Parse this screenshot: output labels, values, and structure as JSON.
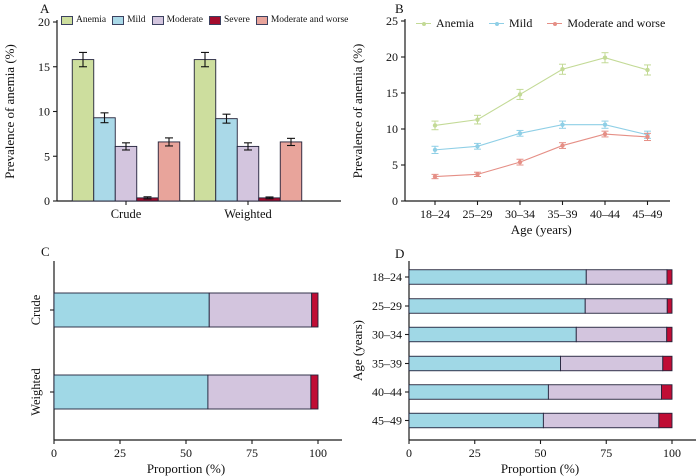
{
  "page": {
    "background": "#ffffff",
    "text_color": "#111111"
  },
  "chart_data": [
    {
      "panel": "A",
      "type": "bar",
      "title": "",
      "xlabel": "",
      "ylabel": "Prevalence of anemia (%)",
      "ylim": [
        0,
        20
      ],
      "yticks": [
        0,
        5,
        10,
        15,
        20
      ],
      "categories": [
        "Crude",
        "Weighted"
      ],
      "legend_position": "top",
      "axis_color": "#1a1a1a",
      "bar_border_color": "#22223a",
      "series": [
        {
          "name": "Anemia",
          "color": "#cdde9e",
          "values": [
            15.8,
            15.8
          ],
          "errors": [
            0.8,
            0.8
          ]
        },
        {
          "name": "Mild",
          "color": "#aad9e8",
          "values": [
            9.3,
            9.2
          ],
          "errors": [
            0.55,
            0.5
          ]
        },
        {
          "name": "Moderate",
          "color": "#d3c5de",
          "values": [
            6.1,
            6.1
          ],
          "errors": [
            0.4,
            0.4
          ]
        },
        {
          "name": "Severe",
          "color": "#a40c2d",
          "values": [
            0.35,
            0.35
          ],
          "errors": [
            0.12,
            0.1
          ]
        },
        {
          "name": "Moderate and worse",
          "color": "#e8a49b",
          "values": [
            6.6,
            6.6
          ],
          "errors": [
            0.45,
            0.4
          ]
        }
      ]
    },
    {
      "panel": "B",
      "type": "line",
      "title": "",
      "xlabel": "Age (years)",
      "ylabel": "Prevalence of anemia (%)",
      "ylim": [
        0,
        25
      ],
      "yticks": [
        0,
        5,
        10,
        15,
        20,
        25
      ],
      "categories": [
        "18–24",
        "25–29",
        "30–34",
        "35–39",
        "40–44",
        "45–49"
      ],
      "legend_position": "top",
      "axis_color": "#1a1a1a",
      "series": [
        {
          "name": "Anemia",
          "color": "#c3da96",
          "values": [
            10.5,
            11.3,
            14.8,
            18.3,
            19.9,
            18.2
          ],
          "errors": [
            0.6,
            0.6,
            0.7,
            0.7,
            0.7,
            0.7
          ]
        },
        {
          "name": "Mild",
          "color": "#8fcfe6",
          "values": [
            7.1,
            7.6,
            9.4,
            10.6,
            10.6,
            9.2
          ],
          "errors": [
            0.5,
            0.4,
            0.4,
            0.5,
            0.5,
            0.5
          ]
        },
        {
          "name": "Moderate and worse",
          "color": "#e58f86",
          "values": [
            3.4,
            3.7,
            5.4,
            7.7,
            9.3,
            8.9
          ],
          "errors": [
            0.3,
            0.3,
            0.4,
            0.4,
            0.4,
            0.5
          ]
        }
      ]
    },
    {
      "panel": "C",
      "type": "stacked-bar-horizontal",
      "title": "",
      "xlabel": "Proportion (%)",
      "ylabel": "",
      "xlim": [
        0,
        100
      ],
      "xticks": [
        0,
        25,
        50,
        75,
        100
      ],
      "categories": [
        "Crude",
        "Weighted"
      ],
      "segments": [
        "Mild",
        "Moderate",
        "Severe"
      ],
      "segment_colors": [
        "#a0d8e6",
        "#d3c5de",
        "#c00d35"
      ],
      "axis_color": "#1a1a1a",
      "bar_border_color": "#22223a",
      "rows": [
        [
          58.8,
          38.8,
          2.4
        ],
        [
          58.3,
          39.0,
          2.7
        ]
      ]
    },
    {
      "panel": "D",
      "type": "stacked-bar-horizontal",
      "title": "",
      "xlabel": "Proportion (%)",
      "ylabel": "Age (years)",
      "xlim": [
        0,
        100
      ],
      "xticks": [
        0,
        25,
        50,
        75,
        100
      ],
      "categories": [
        "18–24",
        "25–29",
        "30–34",
        "35–39",
        "40–44",
        "45–49"
      ],
      "segments": [
        "Mild",
        "Moderate",
        "Severe"
      ],
      "segment_colors": [
        "#a0d8e6",
        "#d3c5de",
        "#c00d35"
      ],
      "axis_color": "#1a1a1a",
      "bar_border_color": "#22223a",
      "rows": [
        [
          67.4,
          30.7,
          1.9
        ],
        [
          67.0,
          31.2,
          1.8
        ],
        [
          63.6,
          34.4,
          2.0
        ],
        [
          57.6,
          38.9,
          3.5
        ],
        [
          53.0,
          43.0,
          4.0
        ],
        [
          51.1,
          43.9,
          5.0
        ]
      ]
    }
  ]
}
